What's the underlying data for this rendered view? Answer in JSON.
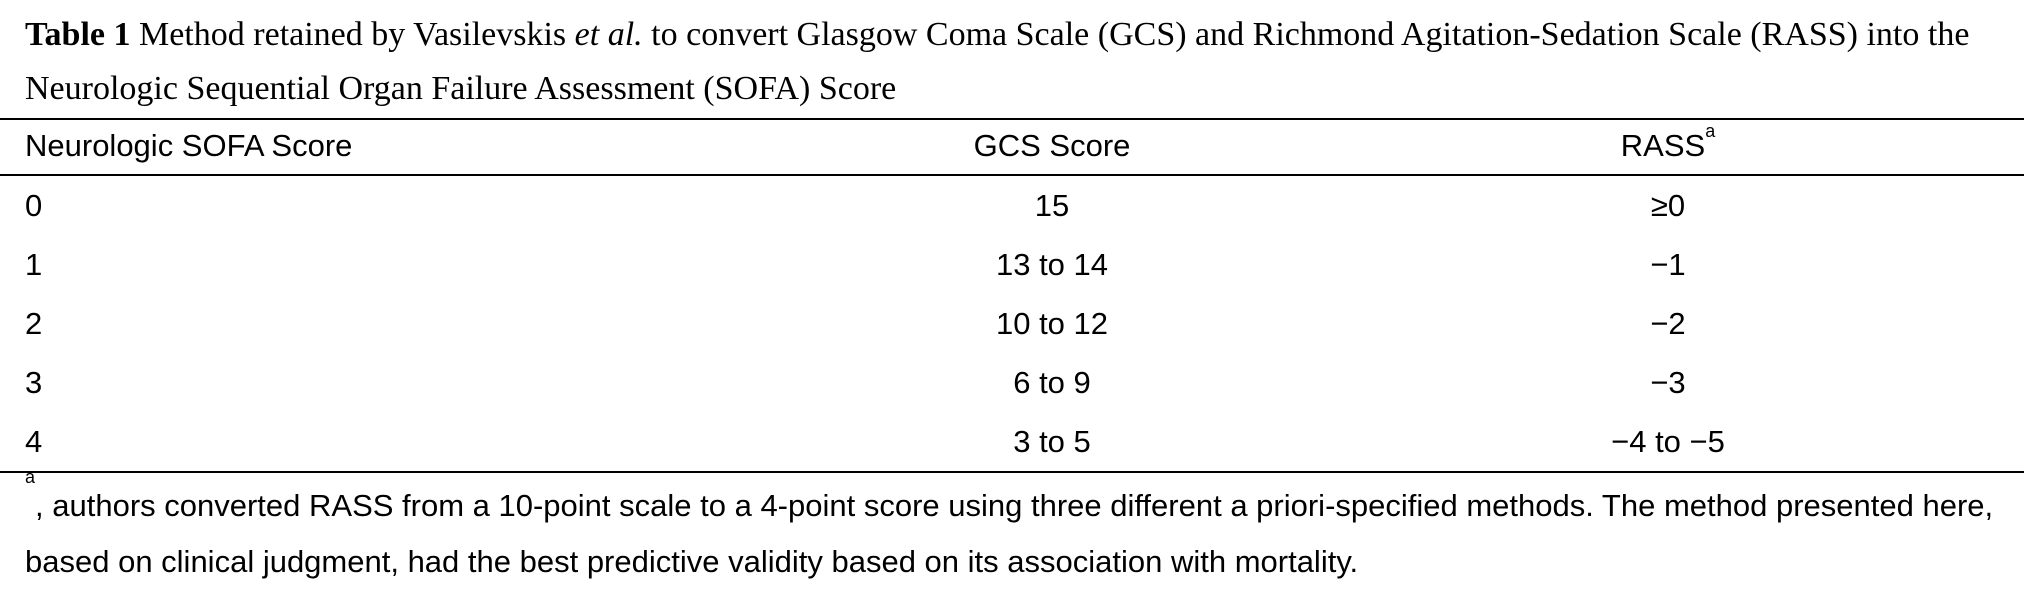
{
  "caption": {
    "label": "Table 1",
    "text_before_italic": " Method retained by Vasilevskis ",
    "italic": "et al.",
    "text_after_italic": " to convert Glasgow Coma Scale (GCS) and Richmond Agitation-Sedation Scale (RASS) into the Neurologic Sequential Organ Failure Assessment (SOFA) Score"
  },
  "table": {
    "headers": {
      "col1": "Neurologic SOFA Score",
      "col2": "GCS Score",
      "col3": "RASS",
      "col3_footnote_mark": "a"
    },
    "rows": [
      {
        "sofa": "0",
        "gcs": "15",
        "rass": "≥0"
      },
      {
        "sofa": "1",
        "gcs": "13 to 14",
        "rass": "−1"
      },
      {
        "sofa": "2",
        "gcs": "10 to 12",
        "rass": "−2"
      },
      {
        "sofa": "3",
        "gcs": "6 to 9",
        "rass": "−3"
      },
      {
        "sofa": "4",
        "gcs": "3 to 5",
        "rass": "−4 to −5"
      }
    ]
  },
  "footnote": {
    "mark": "a",
    "text": ", authors converted RASS from a 10-point scale to a 4-point score using three different a priori-specified methods. The method presented here, based on clinical judgment, had the best predictive validity based on its association with mortality."
  }
}
